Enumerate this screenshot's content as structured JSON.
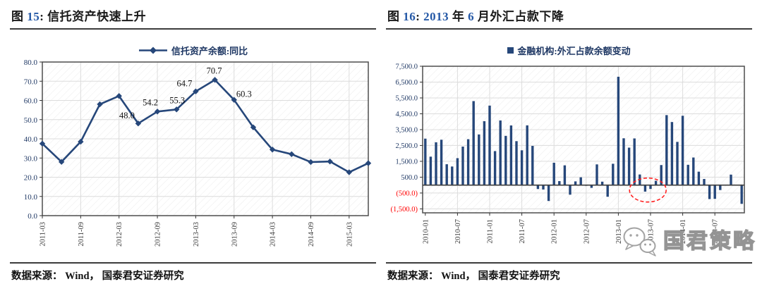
{
  "left": {
    "title_segments": [
      {
        "text": "图 ",
        "blue": false
      },
      {
        "text": "15",
        "blue": true
      },
      {
        "text": ":  ",
        "blue": false
      },
      {
        "text": "信托资产快速上升",
        "blue": false
      }
    ],
    "source": "数据来源： Wind， 国泰君安证券研究"
  },
  "right": {
    "title_segments": [
      {
        "text": "图 ",
        "blue": false
      },
      {
        "text": "16",
        "blue": true
      },
      {
        "text": ":  ",
        "blue": false
      },
      {
        "text": "2013",
        "blue": true
      },
      {
        "text": " 年 ",
        "blue": false
      },
      {
        "text": "6",
        "blue": true
      },
      {
        "text": " 月外汇占款下降",
        "blue": false
      }
    ],
    "source": "数据来源： Wind， 国泰君安证券研究"
  },
  "watermark": {
    "text": "国君策略",
    "icon": "wechat-icon"
  },
  "colors": {
    "navy": "#26477a",
    "title_blue": "#2458a6",
    "grid": "#dcdcdc",
    "hatch": "#ededed",
    "frame": "#4d4d4d",
    "axis_label_navy": "#1f3864",
    "negative_red": "#ff0000",
    "x_label_gray": "#3a3a3a",
    "annotation_red": "#ff2222"
  },
  "chart_data": [
    {
      "type": "line",
      "title": "图 15: 信托资产快速上升",
      "legend": "信托资产余额:同比",
      "categories": [
        "2011-03",
        "2011-06",
        "2011-09",
        "2011-12",
        "2012-03",
        "2012-06",
        "2012-09",
        "2012-12",
        "2013-03",
        "2013-06",
        "2013-09",
        "2013-12",
        "2014-03",
        "2014-06",
        "2014-09",
        "2014-12",
        "2015-03",
        "2015-06"
      ],
      "values": [
        37.5,
        28.0,
        38.5,
        58.0,
        62.3,
        48.0,
        54.2,
        55.3,
        64.7,
        70.7,
        60.3,
        46.0,
        34.4,
        32.0,
        27.9,
        28.2,
        22.6,
        27.3
      ],
      "data_labels": {
        "5": "48.0",
        "6": "54.2",
        "7": "55.3",
        "8": "64.7",
        "9": "70.7",
        "10": "60.3"
      },
      "ylim": [
        0,
        80
      ],
      "ytick_step": 10,
      "ytick_format": "one_decimal",
      "x_label_every": 2,
      "grid": true,
      "legend_position": "top",
      "marker": "diamond"
    },
    {
      "type": "bar",
      "title": "图 16: 2013 年 6 月外汇占款下降",
      "legend": "金融机构:外汇占款余额变动",
      "categories": [
        "2010-01",
        "2010-02",
        "2010-03",
        "2010-04",
        "2010-05",
        "2010-06",
        "2010-07",
        "2010-08",
        "2010-09",
        "2010-10",
        "2010-11",
        "2010-12",
        "2011-01",
        "2011-02",
        "2011-03",
        "2011-04",
        "2011-05",
        "2011-06",
        "2011-07",
        "2011-08",
        "2011-09",
        "2011-10",
        "2011-11",
        "2011-12",
        "2012-01",
        "2012-02",
        "2012-03",
        "2012-04",
        "2012-05",
        "2012-06",
        "2012-07",
        "2012-08",
        "2012-09",
        "2012-10",
        "2012-11",
        "2012-12",
        "2013-01",
        "2013-02",
        "2013-03",
        "2013-04",
        "2013-05",
        "2013-06",
        "2013-07",
        "2013-08",
        "2013-09",
        "2013-10",
        "2013-11",
        "2013-12",
        "2014-01",
        "2014-02",
        "2014-03",
        "2014-04",
        "2014-05",
        "2014-06",
        "2014-07",
        "2014-08",
        "2014-09",
        "2014-10",
        "2014-11",
        "2014-12"
      ],
      "values": [
        2932,
        1795,
        2702,
        2863,
        1316,
        1172,
        1700,
        2430,
        2896,
        5301,
        3196,
        4033,
        5016,
        2145,
        4079,
        3107,
        3764,
        2773,
        2195,
        3769,
        2473,
        -249,
        -279,
        -1003,
        1409,
        251,
        1246,
        -606,
        234,
        491,
        -38,
        -174,
        1307,
        216,
        -736,
        1346,
        6837,
        2954,
        2363,
        2944,
        669,
        -412,
        -245,
        273,
        1264,
        4416,
        3979,
        2727,
        4374,
        1282,
        1741,
        846,
        386,
        -883,
        -867,
        -311,
        11,
        661,
        22,
        -1184
      ],
      "ylim": [
        -1750,
        7500
      ],
      "ytick_step": 1000,
      "ytick_top": 7500,
      "ytick_bottom": -1500,
      "ytick_negative_style": "red_parentheses",
      "x_label_every": 6,
      "grid": true,
      "legend_position": "top",
      "annotation": {
        "shape": "dashed-ellipse",
        "color": "#ff2222",
        "months": [
          "2013-06",
          "2013-07"
        ],
        "meaning": "highlights June-July 2013 negative FX position change"
      }
    }
  ]
}
